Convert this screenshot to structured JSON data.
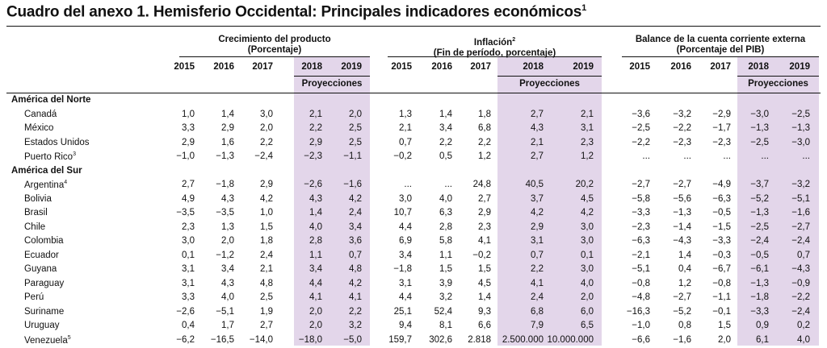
{
  "title": "Cuadro del anexo 1. Hemisferio Occidental: Principales indicadores económicos",
  "title_note": "1",
  "groups": [
    {
      "line1": "Crecimiento del producto",
      "note": "",
      "line2": "(Porcentaje)"
    },
    {
      "line1": "Inflación",
      "note": "2",
      "line2": "(Fin de período, porcentaje)"
    },
    {
      "line1": "Balance de la cuenta corriente externa",
      "note": "",
      "line2": "(Porcentaje del PIB)"
    }
  ],
  "years": [
    "2015",
    "2016",
    "2017",
    "2018",
    "2019"
  ],
  "projections_label": "Proyecciones",
  "regions": [
    {
      "name": "América del Norte",
      "rows": [
        {
          "country": "Canadá",
          "note": "",
          "values": [
            "1,0",
            "1,4",
            "3,0",
            "2,1",
            "2,0",
            "1,3",
            "1,4",
            "1,8",
            "2,7",
            "2,1",
            "−3,6",
            "−3,2",
            "−2,9",
            "−3,0",
            "−2,5"
          ]
        },
        {
          "country": "México",
          "note": "",
          "values": [
            "3,3",
            "2,9",
            "2,0",
            "2,2",
            "2,5",
            "2,1",
            "3,4",
            "6,8",
            "4,3",
            "3,1",
            "−2,5",
            "−2,2",
            "−1,7",
            "−1,3",
            "−1,3"
          ]
        },
        {
          "country": "Estados Unidos",
          "note": "",
          "values": [
            "2,9",
            "1,6",
            "2,2",
            "2,9",
            "2,5",
            "0,7",
            "2,2",
            "2,2",
            "2,1",
            "2,3",
            "−2,2",
            "−2,3",
            "−2,3",
            "−2,5",
            "−3,0"
          ]
        },
        {
          "country": "Puerto Rico",
          "note": "3",
          "values": [
            "−1,0",
            "−1,3",
            "−2,4",
            "−2,3",
            "−1,1",
            "−0,2",
            "0,5",
            "1,2",
            "2,7",
            "1,2",
            "...",
            "...",
            "...",
            "...",
            "..."
          ]
        }
      ]
    },
    {
      "name": "América del Sur",
      "rows": [
        {
          "country": "Argentina",
          "note": "4",
          "values": [
            "2,7",
            "−1,8",
            "2,9",
            "−2,6",
            "−1,6",
            "...",
            "...",
            "24,8",
            "40,5",
            "20,2",
            "−2,7",
            "−2,7",
            "−4,9",
            "−3,7",
            "−3,2"
          ]
        },
        {
          "country": "Bolivia",
          "note": "",
          "values": [
            "4,9",
            "4,3",
            "4,2",
            "4,3",
            "4,2",
            "3,0",
            "4,0",
            "2,7",
            "3,7",
            "4,5",
            "−5,8",
            "−5,6",
            "−6,3",
            "−5,2",
            "−5,1"
          ]
        },
        {
          "country": "Brasil",
          "note": "",
          "values": [
            "−3,5",
            "−3,5",
            "1,0",
            "1,4",
            "2,4",
            "10,7",
            "6,3",
            "2,9",
            "4,2",
            "4,2",
            "−3,3",
            "−1,3",
            "−0,5",
            "−1,3",
            "−1,6"
          ]
        },
        {
          "country": "Chile",
          "note": "",
          "values": [
            "2,3",
            "1,3",
            "1,5",
            "4,0",
            "3,4",
            "4,4",
            "2,8",
            "2,3",
            "2,9",
            "3,0",
            "−2,3",
            "−1,4",
            "−1,5",
            "−2,5",
            "−2,7"
          ]
        },
        {
          "country": "Colombia",
          "note": "",
          "values": [
            "3,0",
            "2,0",
            "1,8",
            "2,8",
            "3,6",
            "6,9",
            "5,8",
            "4,1",
            "3,1",
            "3,0",
            "−6,3",
            "−4,3",
            "−3,3",
            "−2,4",
            "−2,4"
          ]
        },
        {
          "country": "Ecuador",
          "note": "",
          "values": [
            "0,1",
            "−1,2",
            "2,4",
            "1,1",
            "0,7",
            "3,4",
            "1,1",
            "−0,2",
            "0,7",
            "0,1",
            "−2,1",
            "1,4",
            "−0,3",
            "−0,5",
            "0,7"
          ]
        },
        {
          "country": "Guyana",
          "note": "",
          "values": [
            "3,1",
            "3,4",
            "2,1",
            "3,4",
            "4,8",
            "−1,8",
            "1,5",
            "1,5",
            "2,2",
            "3,0",
            "−5,1",
            "0,4",
            "−6,7",
            "−6,1",
            "−4,3"
          ]
        },
        {
          "country": "Paraguay",
          "note": "",
          "values": [
            "3,1",
            "4,3",
            "4,8",
            "4,4",
            "4,2",
            "3,1",
            "3,9",
            "4,5",
            "4,1",
            "4,0",
            "−0,8",
            "1,2",
            "−0,8",
            "−1,3",
            "−0,9"
          ]
        },
        {
          "country": "Perú",
          "note": "",
          "values": [
            "3,3",
            "4,0",
            "2,5",
            "4,1",
            "4,1",
            "4,4",
            "3,2",
            "1,4",
            "2,4",
            "2,0",
            "−4,8",
            "−2,7",
            "−1,1",
            "−1,8",
            "−2,2"
          ]
        },
        {
          "country": "Suriname",
          "note": "",
          "values": [
            "−2,6",
            "−5,1",
            "1,9",
            "2,0",
            "2,2",
            "25,1",
            "52,4",
            "9,3",
            "6,8",
            "6,0",
            "−16,3",
            "−5,2",
            "−0,1",
            "−3,3",
            "−2,4"
          ]
        },
        {
          "country": "Uruguay",
          "note": "",
          "values": [
            "0,4",
            "1,7",
            "2,7",
            "2,0",
            "3,2",
            "9,4",
            "8,1",
            "6,6",
            "7,9",
            "6,5",
            "−1,0",
            "0,8",
            "1,5",
            "0,9",
            "0,2"
          ]
        },
        {
          "country": "Venezuela",
          "note": "5",
          "values": [
            "−6,2",
            "−16,5",
            "−14,0",
            "−18,0",
            "−5,0",
            "159,7",
            "302,6",
            "2.818",
            "2.500.000",
            "10.000.000",
            "−6,6",
            "−1,6",
            "2,0",
            "6,1",
            "4,0"
          ]
        }
      ]
    }
  ]
}
